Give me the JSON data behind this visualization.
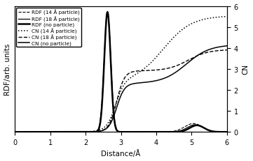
{
  "title": "",
  "xlabel": "Distance/Å",
  "ylabel_left": "RDF/arb. units",
  "ylabel_right": "CN",
  "xlim": [
    0,
    6
  ],
  "ylim_left": [
    0,
    1.05
  ],
  "ylim_right": [
    0,
    6
  ],
  "xticks": [
    0,
    1,
    2,
    3,
    4,
    5,
    6
  ],
  "yticks_right": [
    0,
    1,
    2,
    3,
    4,
    5,
    6
  ],
  "legend_entries": [
    "RDF (14 Å particle)",
    "RDF (18 Å particle)",
    "RDF (no particle)",
    "CN (14 Å particle)",
    "CN (18 Å particle)",
    "CN (no particle)"
  ],
  "figsize": [
    3.61,
    2.32
  ],
  "dpi": 100
}
